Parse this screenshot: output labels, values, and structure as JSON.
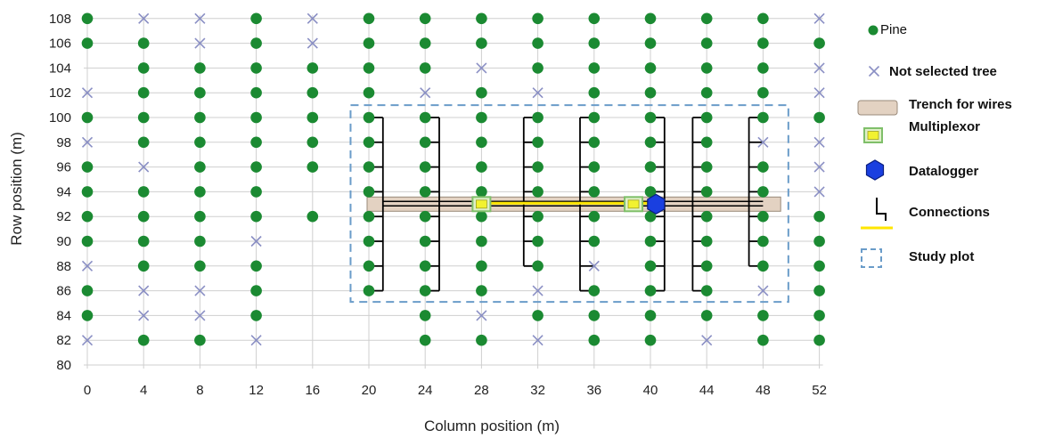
{
  "chart_data": {
    "type": "scatter",
    "xlabel": "Column position (m)",
    "ylabel": "Row position (m)",
    "xlim": [
      0,
      52
    ],
    "ylim": [
      80,
      108
    ],
    "x_ticks": [
      0,
      4,
      8,
      12,
      16,
      20,
      24,
      28,
      32,
      36,
      40,
      44,
      48,
      52
    ],
    "y_ticks": [
      80,
      82,
      84,
      86,
      88,
      90,
      92,
      94,
      96,
      98,
      100,
      102,
      104,
      106,
      108
    ],
    "grid": true,
    "legend_position": "right",
    "legend": [
      {
        "key": "pine",
        "label": "Pine"
      },
      {
        "key": "not_selected",
        "label": "Not selected tree"
      },
      {
        "key": "trench",
        "label": "Trench for wires"
      },
      {
        "key": "multiplexor",
        "label": "Multiplexor"
      },
      {
        "key": "datalogger",
        "label": "Datalogger"
      },
      {
        "key": "connections",
        "label": "Connections"
      },
      {
        "key": "study_plot",
        "label": "Study plot"
      }
    ],
    "not_selected_trees": [
      [
        0,
        102
      ],
      [
        0,
        98
      ],
      [
        0,
        88
      ],
      [
        0,
        82
      ],
      [
        4,
        108
      ],
      [
        4,
        96
      ],
      [
        4,
        86
      ],
      [
        4,
        84
      ],
      [
        8,
        108
      ],
      [
        8,
        106
      ],
      [
        8,
        86
      ],
      [
        8,
        84
      ],
      [
        12,
        90
      ],
      [
        12,
        82
      ],
      [
        16,
        108
      ],
      [
        16,
        106
      ],
      [
        24,
        102
      ],
      [
        28,
        104
      ],
      [
        28,
        84
      ],
      [
        32,
        102
      ],
      [
        32,
        86
      ],
      [
        32,
        82
      ],
      [
        36,
        88
      ],
      [
        44,
        82
      ],
      [
        48,
        98
      ],
      [
        48,
        86
      ],
      [
        52,
        108
      ],
      [
        52,
        104
      ],
      [
        52,
        102
      ],
      [
        52,
        98
      ],
      [
        52,
        96
      ],
      [
        52,
        94
      ]
    ],
    "empty_positions": [
      [
        0,
        80
      ],
      [
        4,
        80
      ],
      [
        8,
        80
      ],
      [
        12,
        80
      ],
      [
        16,
        80
      ],
      [
        20,
        80
      ],
      [
        24,
        80
      ],
      [
        28,
        80
      ],
      [
        32,
        80
      ],
      [
        36,
        80
      ],
      [
        40,
        80
      ],
      [
        44,
        80
      ],
      [
        48,
        80
      ],
      [
        52,
        80
      ],
      [
        0,
        104
      ],
      [
        16,
        94
      ],
      [
        16,
        90
      ],
      [
        16,
        88
      ],
      [
        16,
        86
      ],
      [
        16,
        84
      ],
      [
        16,
        82
      ],
      [
        16,
        80
      ],
      [
        20,
        84
      ],
      [
        20,
        82
      ],
      [
        20,
        80
      ]
    ],
    "trench": {
      "x_start": 20,
      "x_end": 49,
      "y": 93
    },
    "multiplexors": [
      [
        28,
        93
      ],
      [
        38.8,
        93
      ]
    ],
    "datalogger": [
      40.4,
      93
    ],
    "study_plot": {
      "x_start": 18.7,
      "x_end": 49.8,
      "y_start": 85.1,
      "y_end": 101
    },
    "connection_buses": [
      {
        "bus_x": 21,
        "trees_x": 20,
        "y_from": 86,
        "y_to": 100
      },
      {
        "bus_x": 25,
        "trees_x": 24,
        "y_from": 86,
        "y_to": 100
      },
      {
        "bus_x": 31,
        "trees_x": 32,
        "y_from": 88,
        "y_to": 100
      },
      {
        "bus_x": 35,
        "trees_x": 36,
        "y_from": 86,
        "y_to": 100
      },
      {
        "bus_x": 41,
        "trees_x": 40,
        "y_from": 86,
        "y_to": 100
      },
      {
        "bus_x": 43,
        "trees_x": 44,
        "y_from": 86,
        "y_to": 100
      },
      {
        "bus_x": 47,
        "trees_x": 48,
        "y_from": 88,
        "y_to": 100
      }
    ],
    "colors": {
      "pine": "#1b8a32",
      "not_selected": "#8a8fc4",
      "trench_fill": "#e3d2c2",
      "trench_stroke": "#9a8a7a",
      "multiplexor_fill": "#f2f230",
      "multiplexor_border": "#7fbf6a",
      "datalogger": "#1a3fe0",
      "connection_black": "#000000",
      "connection_yellow": "#ffe600",
      "study_plot": "#6a9cc9",
      "grid": "#cfcfcf"
    }
  }
}
